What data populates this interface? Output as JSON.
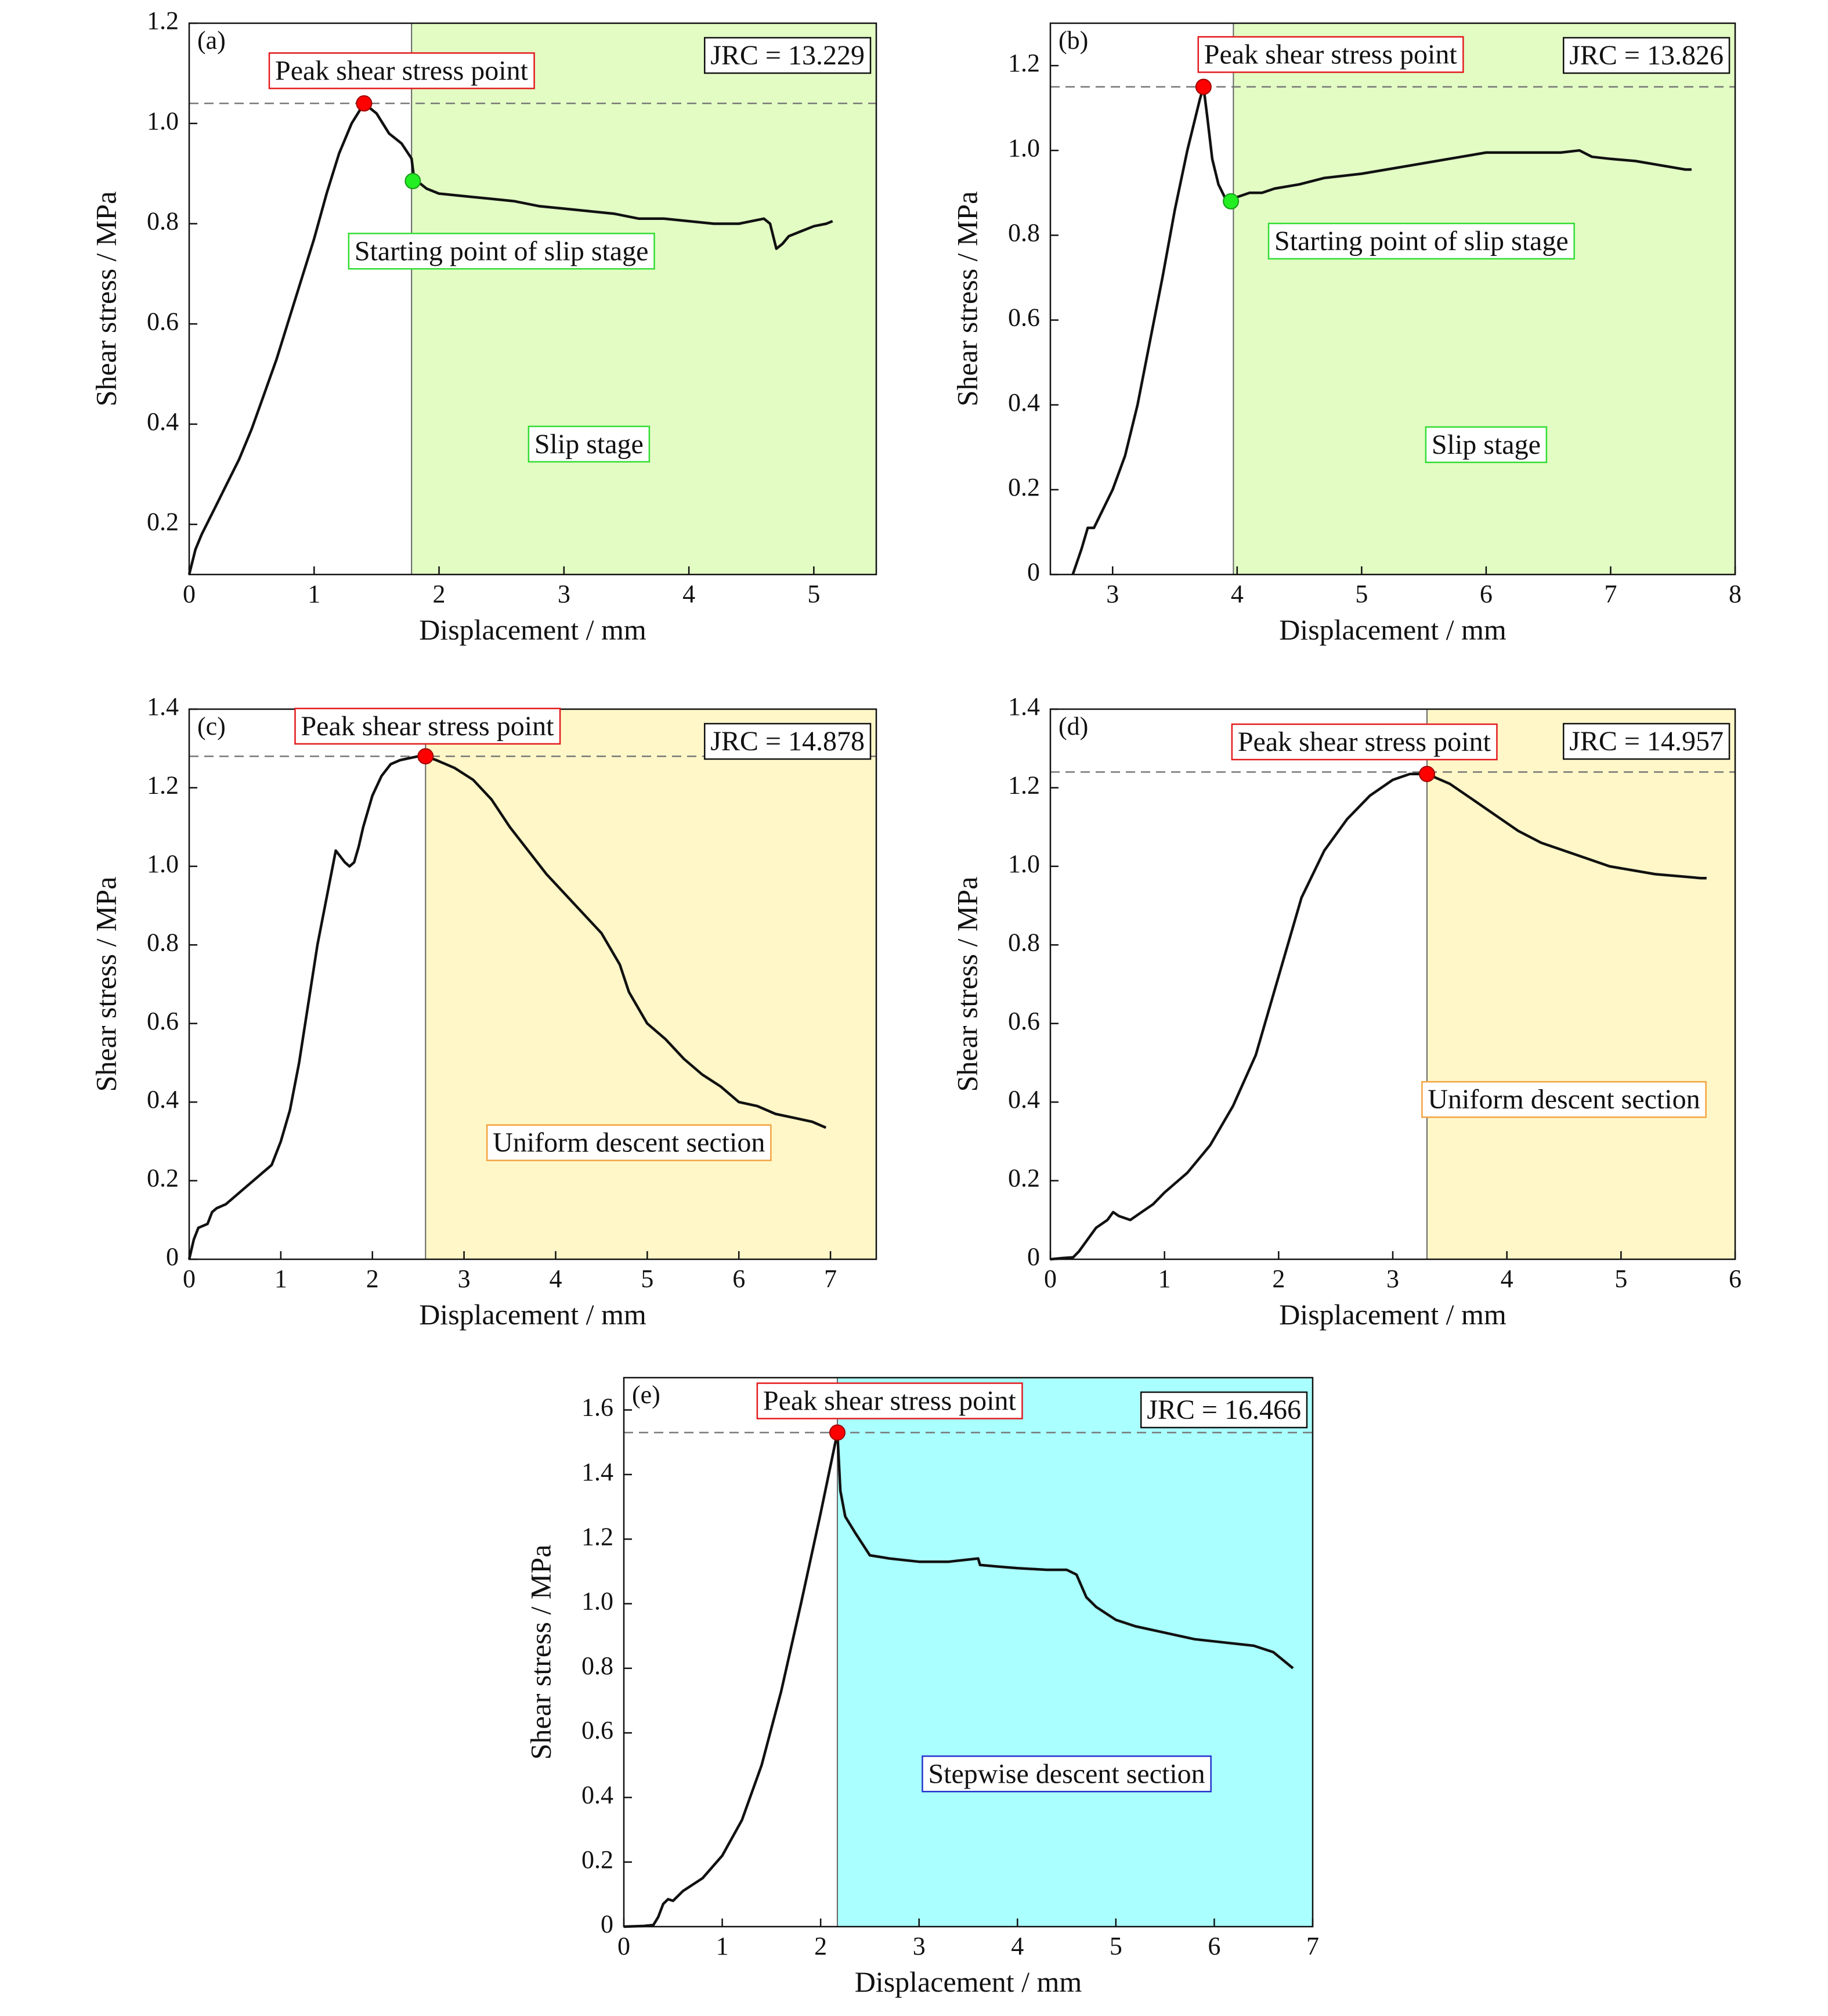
{
  "figure": {
    "xlabel": "Displacement / mm",
    "ylabel": "Shear stress / MPa",
    "colors": {
      "line": "#111111",
      "peak_marker": "#ff0000",
      "slip_marker": "#22ee22",
      "slip_fill": "#e2fcc4",
      "uniform_fill": "#fff7c8",
      "stepwise_fill": "#aaffff",
      "label_red": "#e31a1c",
      "label_green": "#33dd33",
      "label_orange": "#f4a340",
      "label_blue": "#2233cc"
    }
  },
  "chart_data": [
    {
      "type": "line",
      "tag": "(a)",
      "xlabel": "Displacement / mm",
      "ylabel": "Shear stress / MPa",
      "xlim": [
        0,
        5.5
      ],
      "ylim": [
        0.1,
        1.2
      ],
      "xticks": [
        0,
        1,
        2,
        3,
        4,
        5
      ],
      "yticks": [
        0.2,
        0.4,
        0.6,
        0.8,
        1.0,
        1.2
      ],
      "ytick_labels": [
        "0.2",
        "0.4",
        "0.6",
        "0.8",
        "1.0",
        "1.2"
      ],
      "jrc": "JRC = 13.229",
      "stage_start": 1.78,
      "stage_color": "slip_fill",
      "stage_label": "Slip stage",
      "stage_label_at": [
        3.2,
        0.355
      ],
      "stage_label_color": "label_green",
      "peak_y": 1.04,
      "peak": [
        1.4,
        1.04
      ],
      "peak_label": "Peak shear stress point",
      "peak_label_at": [
        1.7,
        1.1
      ],
      "slip_point": [
        1.79,
        0.885
      ],
      "slip_label": "Starting point of slip stage",
      "slip_label_at": [
        2.5,
        0.74
      ],
      "x": [
        0,
        0.05,
        0.1,
        0.2,
        0.3,
        0.4,
        0.5,
        0.6,
        0.7,
        0.8,
        0.9,
        1.0,
        1.1,
        1.2,
        1.3,
        1.4,
        1.5,
        1.6,
        1.7,
        1.78,
        1.8,
        1.9,
        2.0,
        2.2,
        2.4,
        2.6,
        2.8,
        3.0,
        3.2,
        3.4,
        3.6,
        3.8,
        4.0,
        4.2,
        4.4,
        4.6,
        4.65,
        4.7,
        4.75,
        4.8,
        4.9,
        5.0,
        5.1,
        5.15
      ],
      "y": [
        0.1,
        0.15,
        0.18,
        0.23,
        0.28,
        0.33,
        0.39,
        0.46,
        0.53,
        0.61,
        0.69,
        0.77,
        0.86,
        0.94,
        1.0,
        1.04,
        1.02,
        0.98,
        0.96,
        0.93,
        0.89,
        0.87,
        0.86,
        0.855,
        0.85,
        0.845,
        0.835,
        0.83,
        0.825,
        0.82,
        0.81,
        0.81,
        0.805,
        0.8,
        0.8,
        0.81,
        0.8,
        0.75,
        0.76,
        0.775,
        0.785,
        0.795,
        0.8,
        0.805
      ]
    },
    {
      "type": "line",
      "tag": "(b)",
      "xlabel": "Displacement / mm",
      "ylabel": "Shear stress / MPa",
      "xlim": [
        2.5,
        8
      ],
      "ylim": [
        0,
        1.3
      ],
      "xticks": [
        3,
        4,
        5,
        6,
        7,
        8
      ],
      "yticks": [
        0,
        0.2,
        0.4,
        0.6,
        0.8,
        1.0,
        1.2
      ],
      "ytick_labels": [
        "0",
        "0.2",
        "0.4",
        "0.6",
        "0.8",
        "1.0",
        "1.2"
      ],
      "jrc": "JRC = 13.826",
      "stage_start": 3.97,
      "stage_color": "slip_fill",
      "stage_label": "Slip stage",
      "stage_label_at": [
        6.0,
        0.3
      ],
      "stage_label_color": "label_green",
      "peak_y": 1.15,
      "peak": [
        3.73,
        1.15
      ],
      "peak_label": "Peak shear stress point",
      "peak_label_at": [
        4.75,
        1.22
      ],
      "slip_point": [
        3.95,
        0.88
      ],
      "slip_label": "Starting point of slip stage",
      "slip_label_at": [
        5.48,
        0.78
      ],
      "x": [
        2.68,
        2.75,
        2.8,
        2.85,
        2.9,
        3.0,
        3.1,
        3.2,
        3.3,
        3.4,
        3.5,
        3.6,
        3.7,
        3.73,
        3.76,
        3.8,
        3.85,
        3.9,
        3.95,
        4.0,
        4.1,
        4.2,
        4.3,
        4.5,
        4.7,
        5.0,
        5.3,
        5.6,
        5.8,
        6.0,
        6.3,
        6.6,
        6.75,
        6.85,
        7.0,
        7.2,
        7.4,
        7.6,
        7.65
      ],
      "y": [
        0,
        0.06,
        0.11,
        0.11,
        0.14,
        0.2,
        0.28,
        0.4,
        0.55,
        0.7,
        0.86,
        1.0,
        1.12,
        1.15,
        1.08,
        0.98,
        0.92,
        0.89,
        0.88,
        0.89,
        0.9,
        0.9,
        0.91,
        0.92,
        0.935,
        0.945,
        0.96,
        0.975,
        0.985,
        0.995,
        0.995,
        0.995,
        1.0,
        0.985,
        0.98,
        0.975,
        0.965,
        0.955,
        0.955
      ]
    },
    {
      "type": "line",
      "tag": "(c)",
      "xlabel": "Displacement / mm",
      "ylabel": "Shear stress / MPa",
      "xlim": [
        0,
        7.5
      ],
      "ylim": [
        0,
        1.4
      ],
      "xticks": [
        0,
        1,
        2,
        3,
        4,
        5,
        6,
        7
      ],
      "yticks": [
        0,
        0.2,
        0.4,
        0.6,
        0.8,
        1.0,
        1.2,
        1.4
      ],
      "ytick_labels": [
        "0",
        "0.2",
        "0.4",
        "0.6",
        "0.8",
        "1.0",
        "1.2",
        "1.4"
      ],
      "jrc": "JRC = 14.878",
      "stage_start": 2.58,
      "stage_color": "uniform_fill",
      "stage_label": "Uniform descent section",
      "stage_label_at": [
        4.8,
        0.29
      ],
      "stage_label_color": "label_orange",
      "peak_y": 1.28,
      "peak": [
        2.58,
        1.28
      ],
      "peak_label": "Peak shear stress point",
      "peak_label_at": [
        2.6,
        1.35
      ],
      "x": [
        0,
        0.05,
        0.1,
        0.2,
        0.25,
        0.3,
        0.4,
        0.5,
        0.6,
        0.7,
        0.8,
        0.9,
        1.0,
        1.1,
        1.2,
        1.3,
        1.4,
        1.5,
        1.6,
        1.7,
        1.75,
        1.8,
        1.85,
        1.9,
        2.0,
        2.1,
        2.2,
        2.3,
        2.4,
        2.5,
        2.58,
        2.7,
        2.9,
        3.1,
        3.3,
        3.5,
        3.7,
        3.9,
        4.1,
        4.3,
        4.5,
        4.7,
        4.8,
        4.9,
        5.0,
        5.2,
        5.4,
        5.6,
        5.8,
        6.0,
        6.2,
        6.4,
        6.6,
        6.8,
        6.95
      ],
      "y": [
        0,
        0.05,
        0.08,
        0.09,
        0.12,
        0.13,
        0.14,
        0.16,
        0.18,
        0.2,
        0.22,
        0.24,
        0.3,
        0.38,
        0.5,
        0.65,
        0.8,
        0.92,
        1.04,
        1.01,
        1.0,
        1.01,
        1.05,
        1.1,
        1.18,
        1.23,
        1.26,
        1.27,
        1.275,
        1.28,
        1.28,
        1.27,
        1.25,
        1.22,
        1.17,
        1.1,
        1.04,
        0.98,
        0.93,
        0.88,
        0.83,
        0.75,
        0.68,
        0.64,
        0.6,
        0.56,
        0.51,
        0.47,
        0.44,
        0.4,
        0.39,
        0.37,
        0.36,
        0.35,
        0.335
      ]
    },
    {
      "type": "line",
      "tag": "(d)",
      "xlabel": "Displacement / mm",
      "ylabel": "Shear stress / MPa",
      "xlim": [
        0,
        6
      ],
      "ylim": [
        0,
        1.4
      ],
      "xticks": [
        0,
        1,
        2,
        3,
        4,
        5,
        6
      ],
      "yticks": [
        0,
        0.2,
        0.4,
        0.6,
        0.8,
        1.0,
        1.2,
        1.4
      ],
      "ytick_labels": [
        "0",
        "0.2",
        "0.4",
        "0.6",
        "0.8",
        "1.0",
        "1.2",
        "1.4"
      ],
      "jrc": "JRC = 14.957",
      "stage_start": 3.3,
      "stage_color": "uniform_fill",
      "stage_label": "Uniform descent section",
      "stage_label_at": [
        4.5,
        0.4
      ],
      "stage_label_color": "label_orange",
      "peak_y": 1.24,
      "peak": [
        3.3,
        1.235
      ],
      "peak_label": "Peak shear stress point",
      "peak_label_at": [
        2.75,
        1.31
      ],
      "x": [
        0,
        0.1,
        0.2,
        0.25,
        0.3,
        0.4,
        0.5,
        0.55,
        0.6,
        0.7,
        0.8,
        0.9,
        1.0,
        1.2,
        1.4,
        1.6,
        1.8,
        2.0,
        2.2,
        2.4,
        2.6,
        2.8,
        3.0,
        3.15,
        3.3,
        3.5,
        3.7,
        3.9,
        4.1,
        4.3,
        4.5,
        4.7,
        4.9,
        5.1,
        5.3,
        5.5,
        5.7,
        5.75
      ],
      "y": [
        0,
        0.003,
        0.005,
        0.02,
        0.04,
        0.08,
        0.1,
        0.12,
        0.11,
        0.1,
        0.12,
        0.14,
        0.17,
        0.22,
        0.29,
        0.39,
        0.52,
        0.72,
        0.92,
        1.04,
        1.12,
        1.18,
        1.22,
        1.235,
        1.235,
        1.21,
        1.17,
        1.13,
        1.09,
        1.06,
        1.04,
        1.02,
        1.0,
        0.99,
        0.98,
        0.975,
        0.97,
        0.97
      ]
    },
    {
      "type": "line",
      "tag": "(e)",
      "xlabel": "Displacement / mm",
      "ylabel": "Shear stress / MPa",
      "xlim": [
        0,
        7
      ],
      "ylim": [
        0,
        1.7
      ],
      "xticks": [
        0,
        1,
        2,
        3,
        4,
        5,
        6,
        7
      ],
      "yticks": [
        0,
        0.2,
        0.4,
        0.6,
        0.8,
        1.0,
        1.2,
        1.4,
        1.6
      ],
      "ytick_labels": [
        "0",
        "0.2",
        "0.4",
        "0.6",
        "0.8",
        "1.0",
        "1.2",
        "1.4",
        "1.6"
      ],
      "jrc": "JRC = 16.466",
      "stage_start": 2.17,
      "stage_color": "stepwise_fill",
      "stage_label": "Stepwise descent section",
      "stage_label_at": [
        4.5,
        0.465
      ],
      "stage_label_color": "label_blue",
      "peak_y": 1.53,
      "peak": [
        2.17,
        1.53
      ],
      "peak_label": "Peak shear stress point",
      "peak_label_at": [
        2.7,
        1.62
      ],
      "x": [
        0,
        0.2,
        0.3,
        0.35,
        0.4,
        0.45,
        0.5,
        0.6,
        0.8,
        1.0,
        1.2,
        1.4,
        1.6,
        1.8,
        2.0,
        2.17,
        2.2,
        2.25,
        2.35,
        2.5,
        2.7,
        3.0,
        3.3,
        3.6,
        3.62,
        3.8,
        4.0,
        4.3,
        4.5,
        4.6,
        4.7,
        4.8,
        5.0,
        5.2,
        5.5,
        5.8,
        6.1,
        6.4,
        6.6,
        6.8
      ],
      "y": [
        0,
        0.002,
        0.005,
        0.03,
        0.07,
        0.085,
        0.08,
        0.11,
        0.15,
        0.22,
        0.33,
        0.5,
        0.73,
        1.0,
        1.28,
        1.53,
        1.35,
        1.27,
        1.22,
        1.15,
        1.14,
        1.13,
        1.13,
        1.14,
        1.12,
        1.115,
        1.11,
        1.105,
        1.105,
        1.09,
        1.02,
        0.99,
        0.95,
        0.93,
        0.91,
        0.89,
        0.88,
        0.87,
        0.85,
        0.8
      ]
    }
  ]
}
